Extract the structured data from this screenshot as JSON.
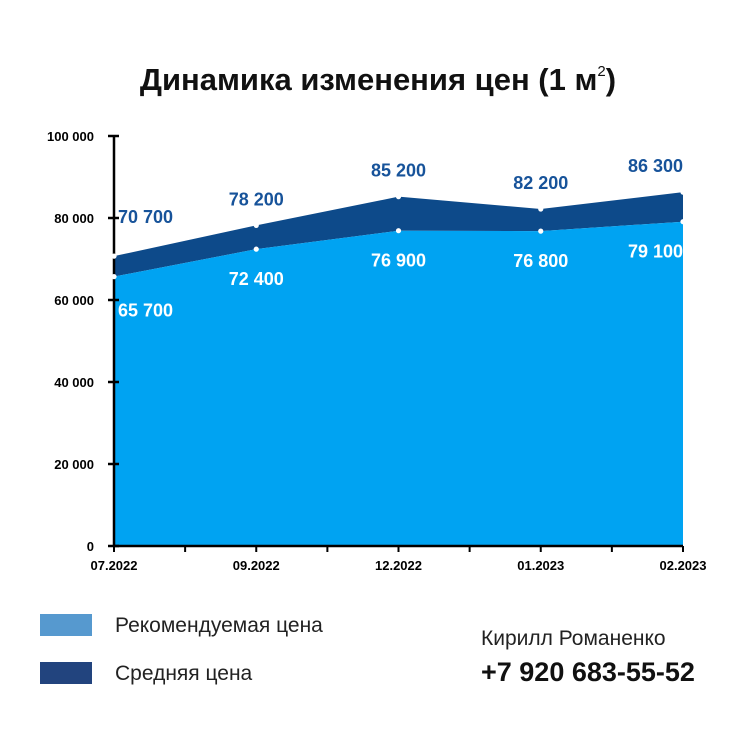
{
  "title": "Динамика изменения цен (1 м",
  "title_sup": "2",
  "colors": {
    "recommended_area": "#00a3f2",
    "average_area": "#0d4a8a",
    "average_label": "#17539a",
    "recommended_label": "#ffffff",
    "legend_recommended": "#5699cf",
    "legend_average": "#22447e"
  },
  "chart_data": {
    "type": "area",
    "title": "Динамика изменения цен (1 м2)",
    "categories": [
      "07.2022",
      "09.2022",
      "12.2022",
      "01.2023",
      "02.2023"
    ],
    "series": [
      {
        "name": "Рекомендуемая цена",
        "values": [
          65700,
          72400,
          76900,
          76800,
          79100
        ],
        "labels": [
          "65 700",
          "72 400",
          "76 900",
          "76 800",
          "79 100"
        ]
      },
      {
        "name": "Средняя цена",
        "values": [
          70700,
          78200,
          85200,
          82200,
          86300
        ],
        "labels": [
          "70 700",
          "78 200",
          "85 200",
          "82 200",
          "86 300"
        ]
      }
    ],
    "ylim": [
      0,
      100000
    ],
    "yticks": [
      0,
      20000,
      40000,
      60000,
      80000,
      100000
    ],
    "ytick_labels": [
      "0",
      "20 000",
      "40 000",
      "60 000",
      "80 000",
      "100 000"
    ],
    "grid": false,
    "legend_position": "bottom-left"
  },
  "legend": [
    {
      "label": "Рекомендуемая цена"
    },
    {
      "label": "Средняя цена"
    }
  ],
  "contact": {
    "name": "Кирилл Романенко",
    "phone": "+7 920 683-55-52"
  }
}
